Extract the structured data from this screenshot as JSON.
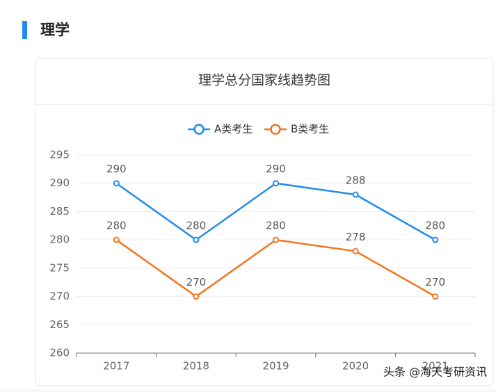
{
  "section_title": "理学",
  "watermark": "头条 @海天考研资讯",
  "chart_data": {
    "type": "line",
    "title": "理学总分国家线趋势图",
    "categories": [
      "2017",
      "2018",
      "2019",
      "2020",
      "2021"
    ],
    "series": [
      {
        "name": "A类考生",
        "color": "#1e8cf0",
        "values": [
          290,
          280,
          290,
          288,
          280
        ]
      },
      {
        "name": "B类考生",
        "color": "#f5731b",
        "values": [
          280,
          270,
          280,
          278,
          270
        ]
      }
    ],
    "ylim": [
      260,
      295
    ],
    "yticks": [
      260,
      265,
      270,
      275,
      280,
      285,
      290,
      295
    ],
    "grid": true,
    "legend": "top"
  }
}
